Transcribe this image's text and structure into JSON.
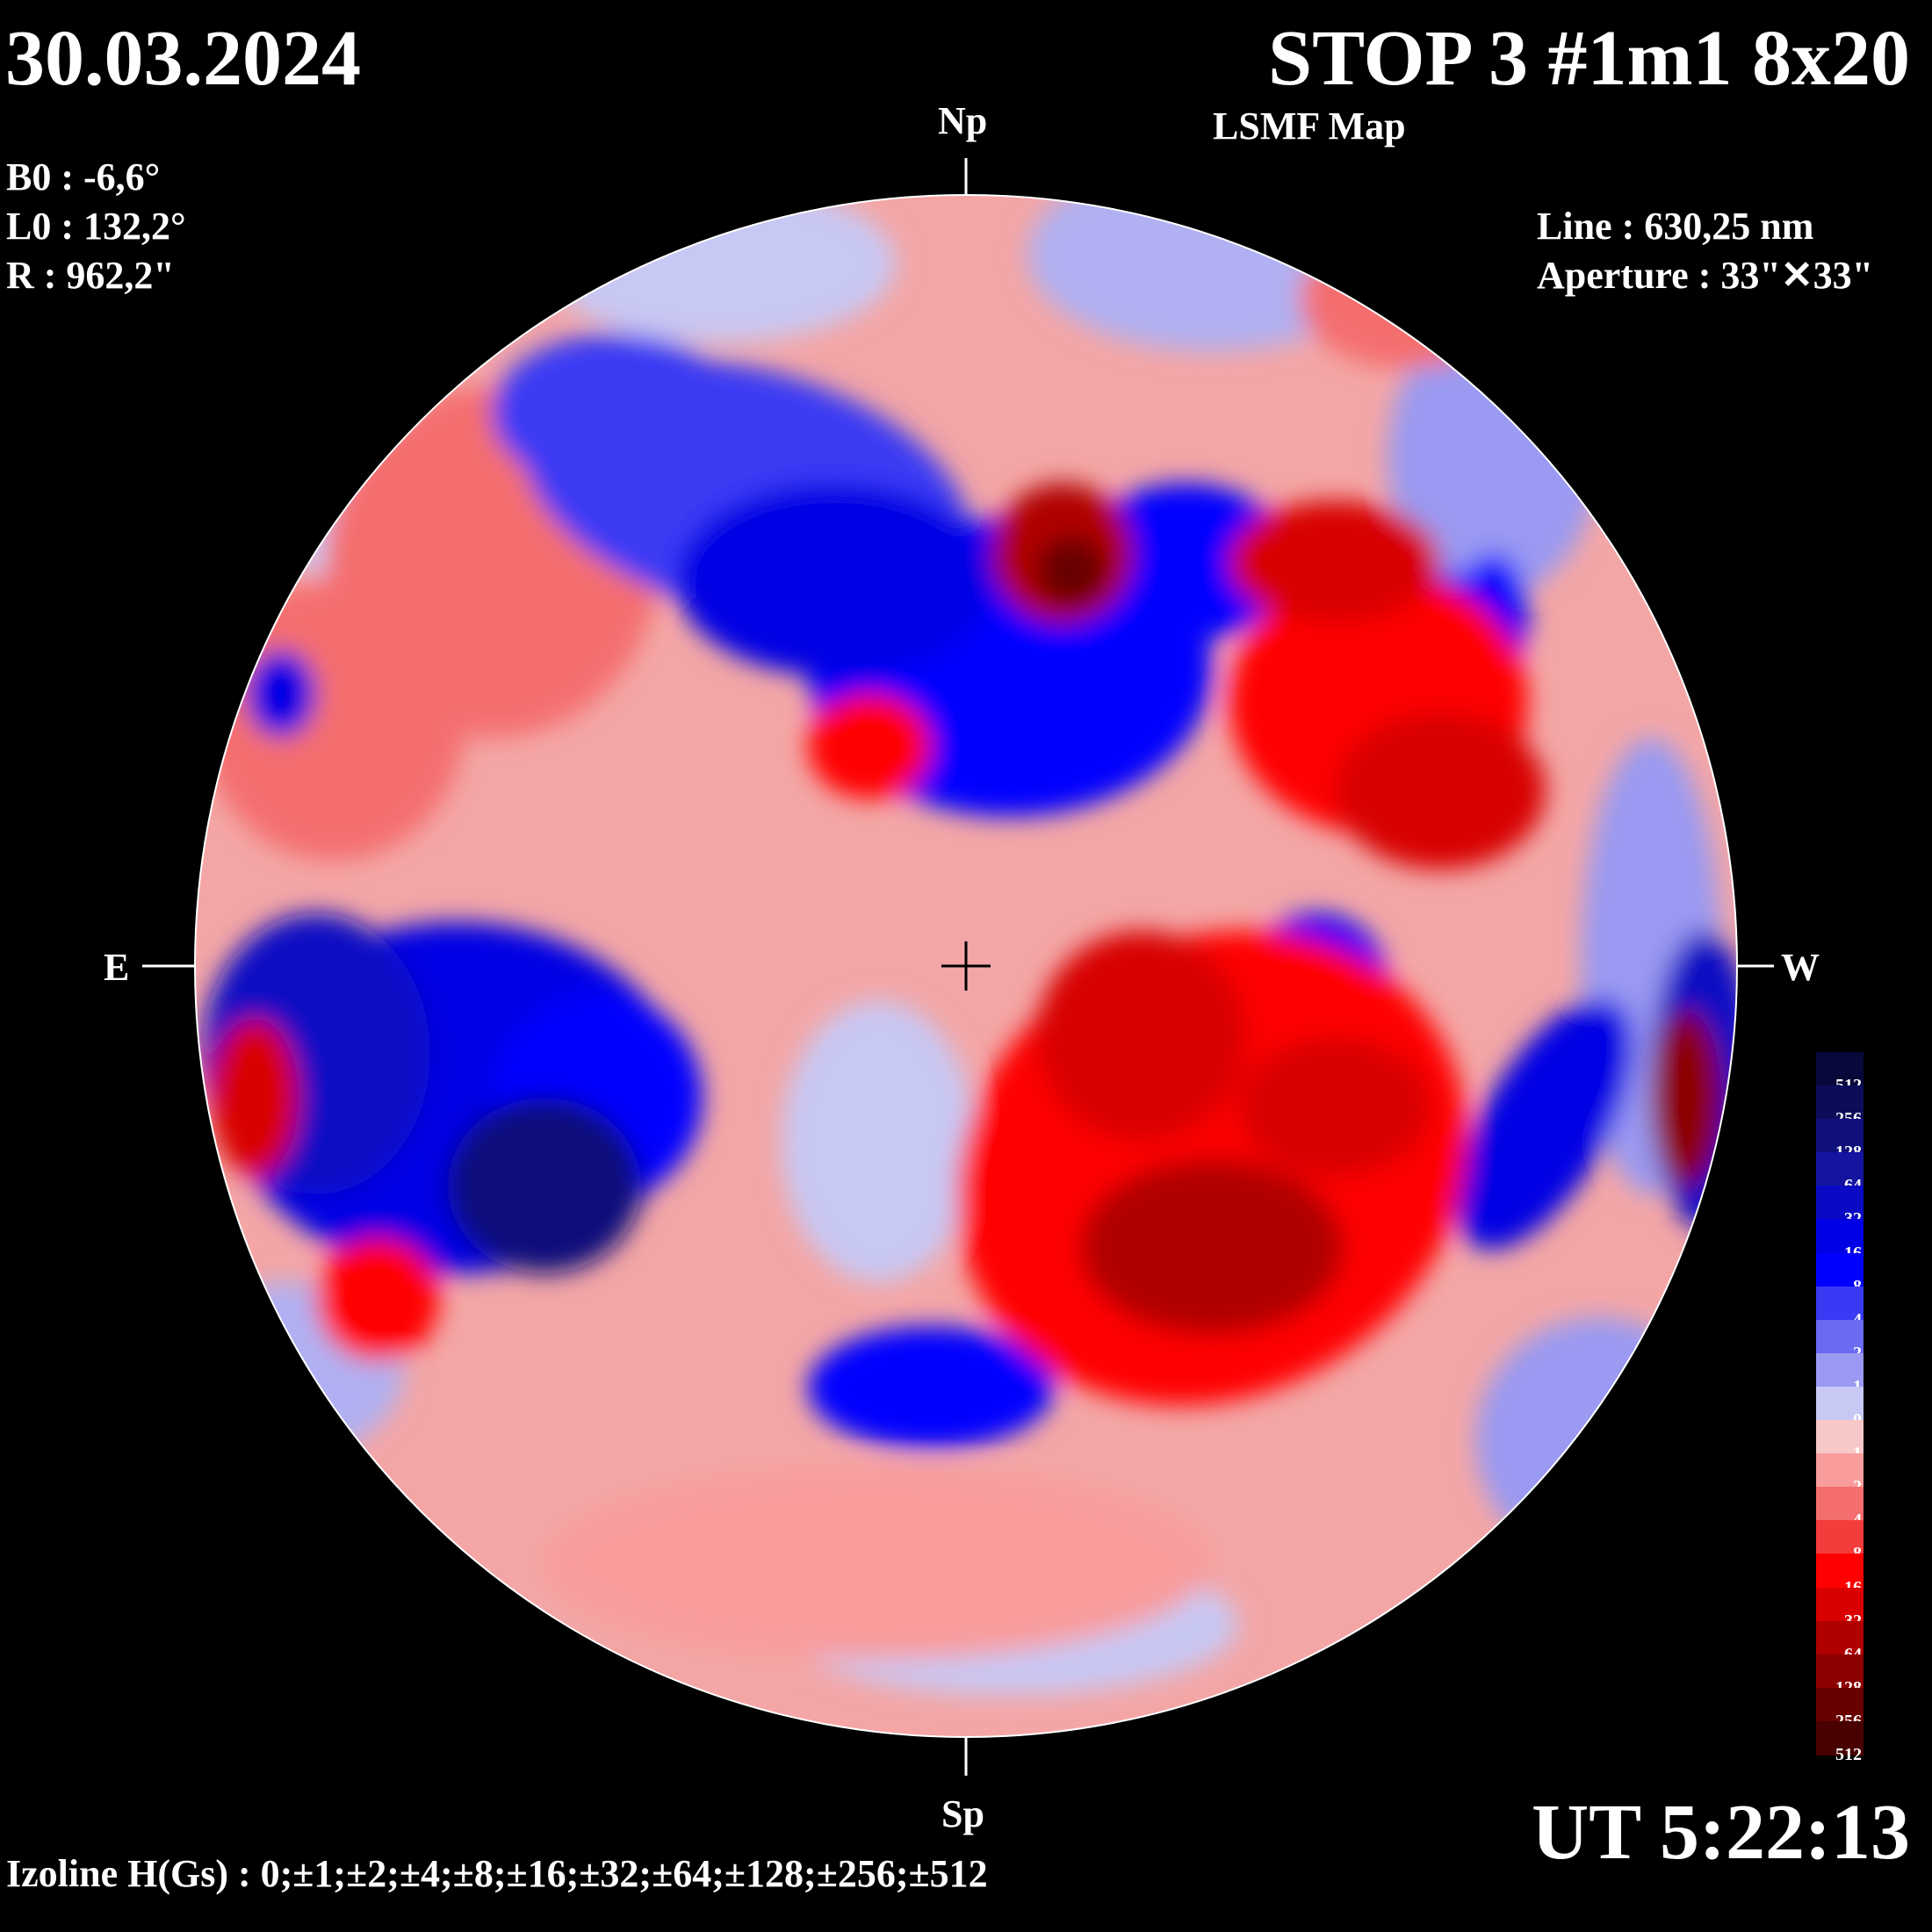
{
  "header": {
    "date": "30.03.2024",
    "title": "STOP 3 #1m1 8x20",
    "subtitle": "LSMF  Map"
  },
  "params": {
    "b0": "B0 : -6,6°",
    "l0": "L0 : 132,2°",
    "r": "R  : 962,2\""
  },
  "instrument": {
    "line": "Line :  630,25 nm",
    "aperture": "Aperture : 33\"✕33\""
  },
  "directions": {
    "north": "Np",
    "south": "Sp",
    "east": "E",
    "west": "W"
  },
  "time": "UT 5:22:13",
  "izoline": "Izoline H(Gs) : 0;±1;±2;±4;±8;±16;±32;±64;±128;±256;±512",
  "scale": [
    {
      "label": "-512",
      "color": "#08083a"
    },
    {
      "label": "-256",
      "color": "#0c0c5a"
    },
    {
      "label": "-128",
      "color": "#10107c"
    },
    {
      "label": "-64",
      "color": "#1414a0"
    },
    {
      "label": "-32",
      "color": "#0a0ac4"
    },
    {
      "label": "-16",
      "color": "#0000e4"
    },
    {
      "label": "-8",
      "color": "#0000ff"
    },
    {
      "label": "-4",
      "color": "#3a3af4"
    },
    {
      "label": "-2",
      "color": "#6a6af2"
    },
    {
      "label": "-1",
      "color": "#9a9af2"
    },
    {
      "label": "0",
      "color": "#c8c8f4"
    },
    {
      "label": "1",
      "color": "#f8c8c8"
    },
    {
      "label": "2",
      "color": "#f89c9c"
    },
    {
      "label": "4",
      "color": "#f46e6e"
    },
    {
      "label": "8",
      "color": "#f43c3c"
    },
    {
      "label": "16",
      "color": "#ff0000"
    },
    {
      "label": "32",
      "color": "#d80000"
    },
    {
      "label": "64",
      "color": "#b00000"
    },
    {
      "label": "128",
      "color": "#8c0000"
    },
    {
      "label": "256",
      "color": "#680000"
    },
    {
      "label": "512",
      "color": "#480000"
    }
  ]
}
